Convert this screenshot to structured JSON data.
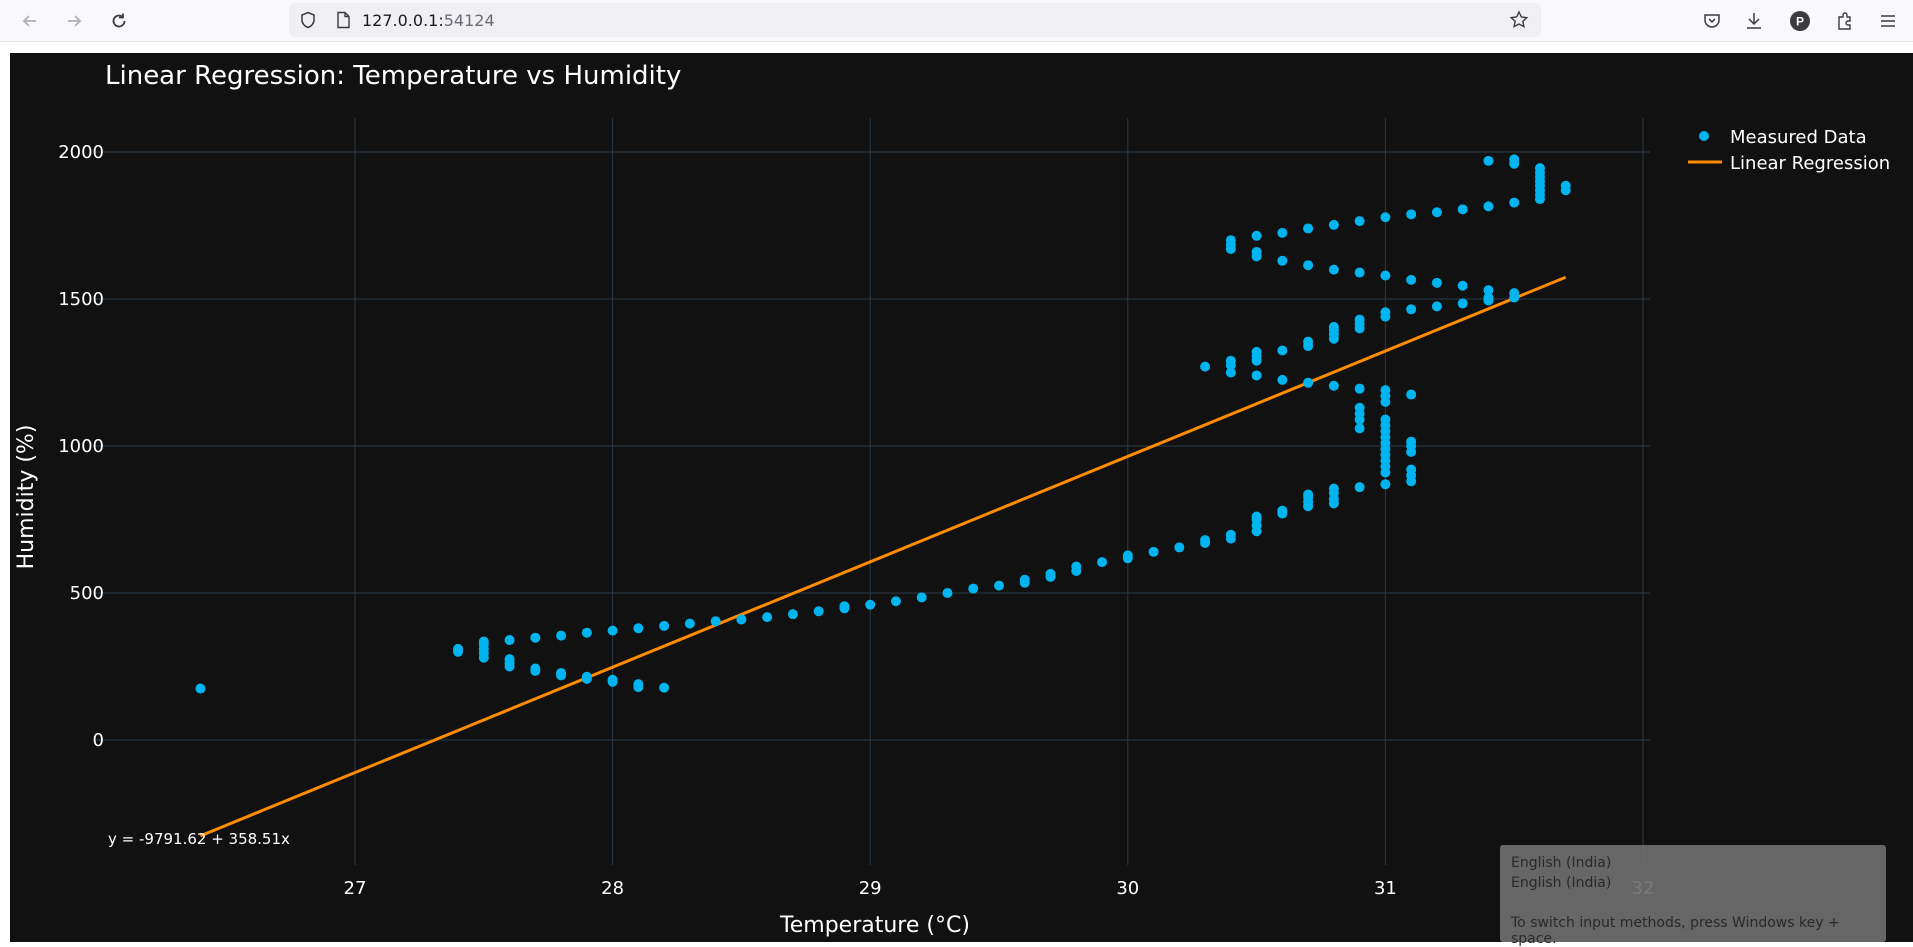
{
  "browser": {
    "url_host": "127.0.0.1:",
    "url_port": "54124",
    "icons": [
      "back-arrow-icon",
      "forward-arrow-icon",
      "reload-icon",
      "shield-icon",
      "page-icon",
      "star-icon",
      "pocket-icon",
      "download-icon",
      "profile-avatar-icon",
      "extensions-icon",
      "menu-icon"
    ],
    "avatar_letter": "P"
  },
  "chart_data": {
    "type": "scatter",
    "title": "Linear Regression: Temperature vs Humidity",
    "xlabel": "Temperature (°C)",
    "ylabel": "Humidity (%)",
    "xlim": [
      26.0,
      32.0
    ],
    "ylim": [
      -400,
      2100
    ],
    "x_ticks": [
      27,
      28,
      29,
      30,
      31,
      32
    ],
    "y_ticks": [
      0,
      500,
      1000,
      1500,
      2000
    ],
    "grid": true,
    "legend_position": "top-right",
    "annotation": "y = -9791.62 + 358.51x",
    "colors": {
      "background": "#111111",
      "scatter": "#00b4f0",
      "line": "#ff8c00",
      "grid": "#2a3a4a",
      "text": "#ffffff"
    },
    "series": [
      {
        "name": "Measured Data",
        "mode": "markers",
        "points": [
          [
            26.4,
            175
          ],
          [
            27.4,
            300
          ],
          [
            27.4,
            310
          ],
          [
            27.5,
            280
          ],
          [
            27.5,
            295
          ],
          [
            27.5,
            310
          ],
          [
            27.5,
            325
          ],
          [
            27.5,
            335
          ],
          [
            27.6,
            250
          ],
          [
            27.6,
            262
          ],
          [
            27.6,
            275
          ],
          [
            27.6,
            340
          ],
          [
            27.7,
            235
          ],
          [
            27.7,
            243
          ],
          [
            27.7,
            348
          ],
          [
            27.8,
            220
          ],
          [
            27.8,
            228
          ],
          [
            27.8,
            355
          ],
          [
            27.9,
            208
          ],
          [
            27.9,
            215
          ],
          [
            27.9,
            365
          ],
          [
            28.0,
            198
          ],
          [
            28.0,
            205
          ],
          [
            28.0,
            372
          ],
          [
            28.1,
            180
          ],
          [
            28.1,
            190
          ],
          [
            28.1,
            380
          ],
          [
            28.2,
            178
          ],
          [
            28.2,
            388
          ],
          [
            28.3,
            396
          ],
          [
            28.4,
            404
          ],
          [
            28.5,
            410
          ],
          [
            28.6,
            418
          ],
          [
            28.7,
            428
          ],
          [
            28.8,
            438
          ],
          [
            28.9,
            448
          ],
          [
            28.9,
            455
          ],
          [
            29.0,
            460
          ],
          [
            29.1,
            472
          ],
          [
            29.2,
            485
          ],
          [
            29.3,
            500
          ],
          [
            29.4,
            515
          ],
          [
            29.5,
            525
          ],
          [
            29.6,
            535
          ],
          [
            29.6,
            545
          ],
          [
            29.7,
            555
          ],
          [
            29.7,
            565
          ],
          [
            29.8,
            575
          ],
          [
            29.8,
            590
          ],
          [
            29.9,
            605
          ],
          [
            30.0,
            618
          ],
          [
            30.0,
            628
          ],
          [
            30.1,
            640
          ],
          [
            30.2,
            655
          ],
          [
            30.3,
            670
          ],
          [
            30.3,
            680
          ],
          [
            30.4,
            685
          ],
          [
            30.4,
            698
          ],
          [
            30.5,
            710
          ],
          [
            30.5,
            730
          ],
          [
            30.5,
            750
          ],
          [
            30.5,
            760
          ],
          [
            30.6,
            770
          ],
          [
            30.6,
            780
          ],
          [
            30.7,
            795
          ],
          [
            30.7,
            810
          ],
          [
            30.7,
            825
          ],
          [
            30.7,
            835
          ],
          [
            30.8,
            805
          ],
          [
            30.8,
            820
          ],
          [
            30.8,
            840
          ],
          [
            30.8,
            855
          ],
          [
            30.9,
            860
          ],
          [
            31.0,
            870
          ],
          [
            31.0,
            910
          ],
          [
            31.0,
            930
          ],
          [
            31.0,
            950
          ],
          [
            31.0,
            970
          ],
          [
            31.0,
            990
          ],
          [
            31.0,
            1010
          ],
          [
            31.0,
            1030
          ],
          [
            31.0,
            1050
          ],
          [
            31.0,
            1070
          ],
          [
            31.0,
            1090
          ],
          [
            30.9,
            1060
          ],
          [
            30.9,
            1090
          ],
          [
            30.9,
            1110
          ],
          [
            30.9,
            1130
          ],
          [
            31.1,
            880
          ],
          [
            31.1,
            900
          ],
          [
            31.1,
            920
          ],
          [
            31.1,
            980
          ],
          [
            31.1,
            1000
          ],
          [
            31.1,
            1015
          ],
          [
            31.0,
            1150
          ],
          [
            31.0,
            1170
          ],
          [
            31.0,
            1190
          ],
          [
            31.1,
            1175
          ],
          [
            30.9,
            1195
          ],
          [
            30.8,
            1205
          ],
          [
            30.7,
            1215
          ],
          [
            30.6,
            1225
          ],
          [
            30.5,
            1240
          ],
          [
            30.3,
            1270
          ],
          [
            30.4,
            1250
          ],
          [
            30.4,
            1275
          ],
          [
            30.4,
            1290
          ],
          [
            30.5,
            1290
          ],
          [
            30.5,
            1305
          ],
          [
            30.5,
            1320
          ],
          [
            30.6,
            1325
          ],
          [
            30.7,
            1340
          ],
          [
            30.7,
            1355
          ],
          [
            30.8,
            1365
          ],
          [
            30.8,
            1380
          ],
          [
            30.8,
            1395
          ],
          [
            30.8,
            1405
          ],
          [
            30.9,
            1400
          ],
          [
            30.9,
            1415
          ],
          [
            30.9,
            1430
          ],
          [
            31.0,
            1440
          ],
          [
            31.0,
            1455
          ],
          [
            31.1,
            1465
          ],
          [
            31.2,
            1475
          ],
          [
            31.3,
            1485
          ],
          [
            31.4,
            1495
          ],
          [
            31.4,
            1505
          ],
          [
            31.5,
            1505
          ],
          [
            31.5,
            1520
          ],
          [
            31.4,
            1530
          ],
          [
            31.3,
            1545
          ],
          [
            31.2,
            1555
          ],
          [
            31.1,
            1565
          ],
          [
            31.0,
            1580
          ],
          [
            30.9,
            1590
          ],
          [
            30.8,
            1600
          ],
          [
            30.7,
            1615
          ],
          [
            30.6,
            1630
          ],
          [
            30.5,
            1645
          ],
          [
            30.5,
            1660
          ],
          [
            30.4,
            1670
          ],
          [
            30.4,
            1685
          ],
          [
            30.4,
            1700
          ],
          [
            30.5,
            1715
          ],
          [
            30.6,
            1725
          ],
          [
            30.7,
            1740
          ],
          [
            30.8,
            1752
          ],
          [
            30.9,
            1765
          ],
          [
            31.0,
            1778
          ],
          [
            31.1,
            1788
          ],
          [
            31.2,
            1795
          ],
          [
            31.3,
            1805
          ],
          [
            31.4,
            1815
          ],
          [
            31.5,
            1828
          ],
          [
            31.6,
            1840
          ],
          [
            31.6,
            1855
          ],
          [
            31.6,
            1870
          ],
          [
            31.6,
            1885
          ],
          [
            31.6,
            1900
          ],
          [
            31.6,
            1915
          ],
          [
            31.6,
            1930
          ],
          [
            31.6,
            1945
          ],
          [
            31.7,
            1870
          ],
          [
            31.7,
            1885
          ],
          [
            31.4,
            1970
          ],
          [
            31.5,
            1960
          ],
          [
            31.5,
            1975
          ]
        ]
      },
      {
        "name": "Linear Regression",
        "mode": "lines",
        "points": [
          [
            26.4,
            -326
          ],
          [
            31.7,
            1574
          ]
        ]
      }
    ]
  },
  "ime": {
    "line1": "English (India)",
    "line2": "English (India)",
    "hint": "To switch input methods, press Windows key + space."
  }
}
